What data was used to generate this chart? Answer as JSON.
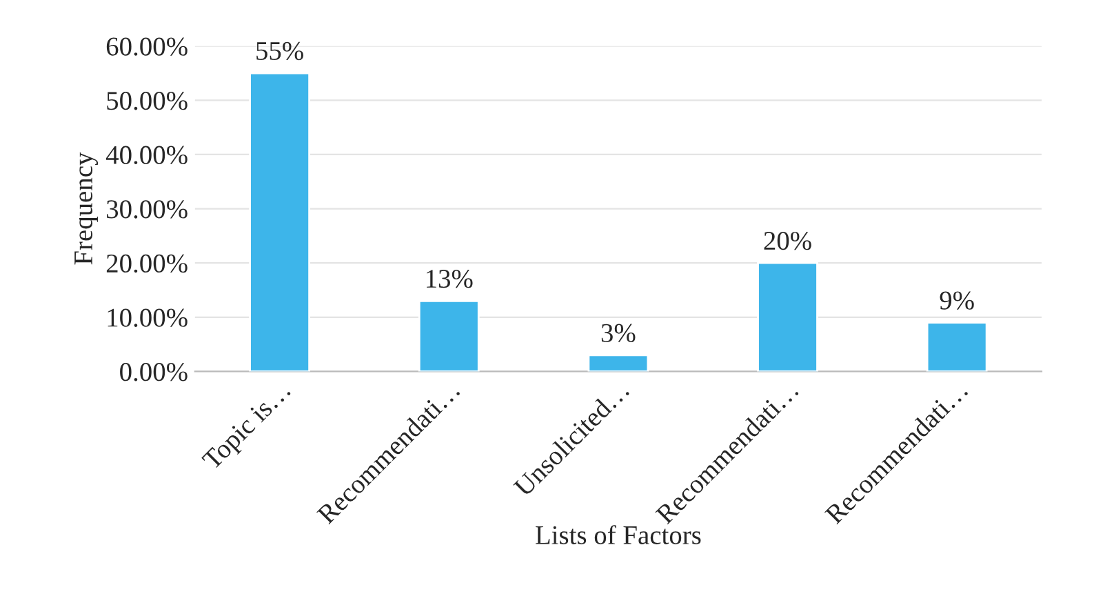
{
  "chart_data": {
    "type": "bar",
    "xlabel": "Lists of Factors",
    "ylabel": "Frequency",
    "categories": [
      "Topic is…",
      "Recommendati…",
      "Unsolicited…",
      "Recommendati…",
      "Recommendati…"
    ],
    "values": [
      55,
      13,
      3,
      20,
      9
    ],
    "value_labels": [
      "55%",
      "13%",
      "3%",
      "20%",
      "9%"
    ],
    "color": "#3db5ea",
    "ylim": [
      0,
      60
    ],
    "yticks": [
      {
        "value": 0,
        "label": "0.00%"
      },
      {
        "value": 10,
        "label": "10.00%"
      },
      {
        "value": 20,
        "label": "20.00%"
      },
      {
        "value": 30,
        "label": "30.00%"
      },
      {
        "value": 40,
        "label": "40.00%"
      },
      {
        "value": 50,
        "label": "50.00%"
      },
      {
        "value": 60,
        "label": "60.00%"
      }
    ],
    "grid": "y"
  }
}
